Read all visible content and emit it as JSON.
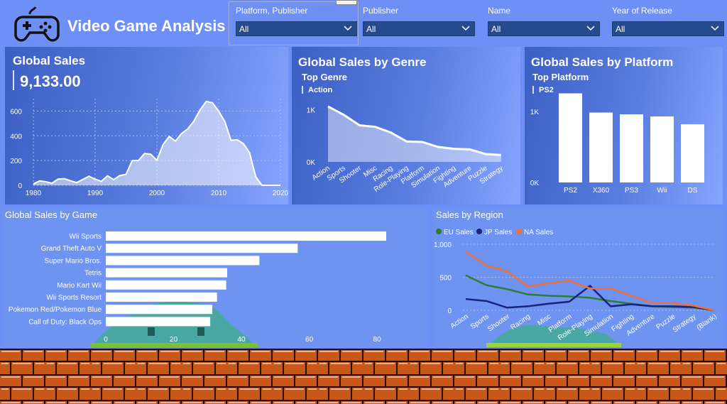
{
  "header": {
    "title": "Video Game Analysis",
    "logo_icon": "gamepad-icon"
  },
  "slicers": [
    {
      "label": "Platform, Publisher",
      "value": "All"
    },
    {
      "label": "Publisher",
      "value": "All"
    },
    {
      "label": "Name",
      "value": "All"
    },
    {
      "label": "Year of Release",
      "value": "All"
    }
  ],
  "colors": {
    "background": "#6e8ff5",
    "eu": "#2e7d32",
    "jp": "#1a237e",
    "na": "#f0703a",
    "bar": "#ffffff"
  },
  "global_sales": {
    "title": "Global Sales",
    "kpi": "9,133.00"
  },
  "genre": {
    "title": "Global Sales by Genre",
    "sub_title": "Top Genre",
    "top_value": "Action"
  },
  "platform": {
    "title": "Global Sales by Platform",
    "sub_title": "Top Platform",
    "top_value": "PS2"
  },
  "game": {
    "title": "Global Sales by Game"
  },
  "region": {
    "title": "Sales by Region"
  },
  "chart_data": [
    {
      "id": "global-sales-area",
      "type": "area",
      "title": "Global Sales",
      "x": [
        1980,
        1981,
        1982,
        1983,
        1984,
        1985,
        1986,
        1987,
        1988,
        1989,
        1990,
        1991,
        1992,
        1993,
        1994,
        1995,
        1996,
        1997,
        1998,
        1999,
        2000,
        2001,
        2002,
        2003,
        2004,
        2005,
        2006,
        2007,
        2008,
        2009,
        2010,
        2011,
        2012,
        2013,
        2014,
        2015,
        2016,
        2017,
        2020
      ],
      "y": [
        11,
        36,
        29,
        17,
        50,
        54,
        37,
        22,
        47,
        73,
        50,
        32,
        77,
        46,
        79,
        88,
        200,
        200,
        257,
        251,
        202,
        330,
        395,
        357,
        419,
        456,
        520,
        611,
        678,
        667,
        600,
        515,
        364,
        368,
        337,
        264,
        70,
        0,
        0
      ],
      "xlim": [
        1980,
        2020
      ],
      "ylim": [
        0,
        700
      ],
      "xticks": [
        "1980",
        "1990",
        "2000",
        "2010",
        "2020"
      ],
      "yticks": [
        "0",
        "200",
        "400",
        "600"
      ],
      "grid": true
    },
    {
      "id": "genre-area",
      "type": "area",
      "title": "Global Sales by Genre",
      "categories": [
        "Action",
        "Sports",
        "Shooter",
        "Misc",
        "Racing",
        "Role-Playing",
        "Platform",
        "Simulation",
        "Fighting",
        "Adventure",
        "Puzzle",
        "Strategy"
      ],
      "values": [
        1060,
        900,
        700,
        670,
        560,
        390,
        380,
        285,
        250,
        240,
        150,
        130
      ],
      "ylim": [
        0,
        1100
      ],
      "yticks": [
        "0K",
        "1K"
      ]
    },
    {
      "id": "platform-bar",
      "type": "bar",
      "title": "Global Sales by Platform",
      "categories": [
        "PS2",
        "X360",
        "PS3",
        "Wii",
        "DS"
      ],
      "values": [
        1255,
        985,
        960,
        930,
        820
      ],
      "ylim": [
        0,
        1600
      ],
      "yticks": [
        "0K",
        "1K"
      ]
    },
    {
      "id": "game-hbar",
      "type": "bar",
      "orientation": "horizontal",
      "title": "Global Sales by Game",
      "categories": [
        "Wii Sports",
        "Grand Theft Auto V",
        "Super Mario Bros.",
        "Tetris",
        "Mario Kart Wii",
        "Wii Sports Resort",
        "Pokemon Red/Pokemon Blue",
        "Call of Duty: Black Ops"
      ],
      "values": [
        82.7,
        56.6,
        45.3,
        35.8,
        35.5,
        32.8,
        31.4,
        30.8
      ],
      "xlim": [
        0,
        85
      ],
      "xticks": [
        "0",
        "20",
        "40",
        "60",
        "80"
      ]
    },
    {
      "id": "region-line",
      "type": "line",
      "title": "Sales by Region",
      "categories": [
        "Action",
        "Sports",
        "Shooter",
        "Racing",
        "Misc",
        "Platform",
        "Role-Playing",
        "Simulation",
        "Fighting",
        "Adventure",
        "Puzzle",
        "Strategy",
        "(Blank)"
      ],
      "ylim": [
        0,
        1000
      ],
      "yticks": [
        "0",
        "500",
        "1,000"
      ],
      "legend": "top-left",
      "series": [
        {
          "name": "EU Sales",
          "values": [
            530,
            380,
            320,
            240,
            220,
            210,
            190,
            140,
            100,
            60,
            50,
            40,
            0
          ]
        },
        {
          "name": "JP Sales",
          "values": [
            170,
            140,
            40,
            60,
            100,
            130,
            370,
            60,
            90,
            60,
            60,
            50,
            0
          ]
        },
        {
          "name": "NA Sales",
          "values": [
            890,
            680,
            590,
            360,
            410,
            450,
            330,
            330,
            220,
            110,
            110,
            70,
            0
          ]
        }
      ]
    }
  ]
}
